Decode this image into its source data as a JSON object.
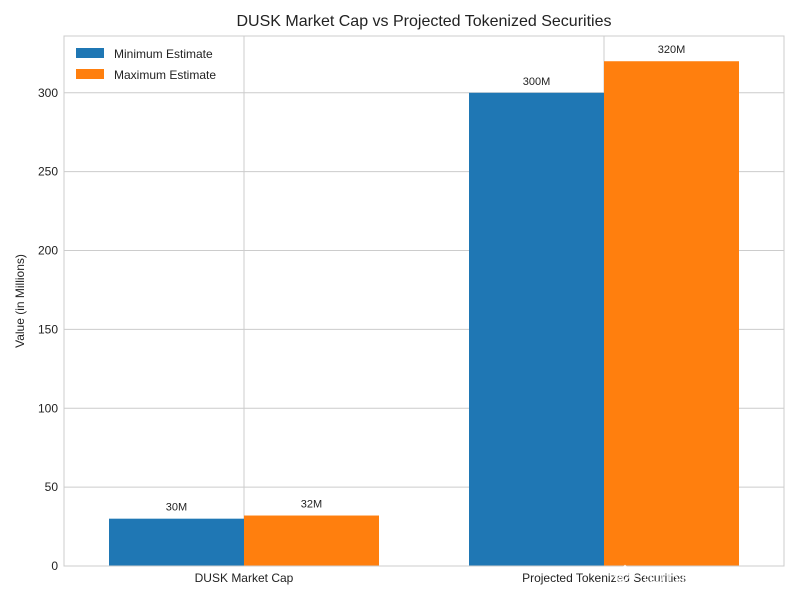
{
  "chart_data": {
    "type": "bar",
    "title": "DUSK Market Cap vs Projected Tokenized Securities",
    "xlabel": "",
    "ylabel": "Value (in Millions)",
    "categories": [
      "DUSK Market Cap",
      "Projected Tokenized Securities"
    ],
    "series": [
      {
        "name": "Minimum Estimate",
        "values": [
          30,
          300
        ],
        "labels": [
          "30M",
          "300M"
        ],
        "color": "#1f77b4"
      },
      {
        "name": "Maximum Estimate",
        "values": [
          32,
          320
        ],
        "labels": [
          "32M",
          "320M"
        ],
        "color": "#ff7f0e"
      }
    ],
    "ylim": [
      0,
      336
    ],
    "yticks": [
      0,
      50,
      100,
      150,
      200,
      250,
      300
    ],
    "grid": true,
    "legend": "top-left"
  },
  "watermark": {
    "text": "@BitC_Fahmi"
  }
}
